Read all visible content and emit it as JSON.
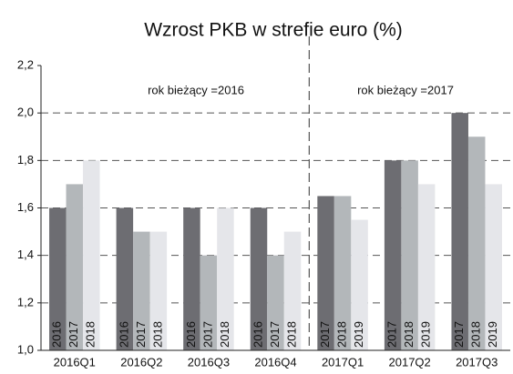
{
  "chart_data": {
    "type": "bar",
    "title": "Wzrost PKB w strefie euro (%)",
    "categories": [
      "2016Q1",
      "2016Q2",
      "2016Q3",
      "2016Q4",
      "2017Q1",
      "2017Q2",
      "2017Q3"
    ],
    "series": [
      {
        "color": "#6d6d72",
        "values": [
          1.6,
          1.6,
          1.6,
          1.6,
          1.65,
          1.8,
          2.0
        ]
      },
      {
        "color": "#b3b7ba",
        "values": [
          1.7,
          1.5,
          1.4,
          1.4,
          1.65,
          1.8,
          1.9
        ]
      },
      {
        "color": "#e5e6ea",
        "values": [
          1.8,
          1.5,
          1.6,
          1.5,
          1.55,
          1.7,
          1.7
        ]
      }
    ],
    "bar_labels": [
      [
        "2016",
        "2017",
        "2018"
      ],
      [
        "2016",
        "2017",
        "2018"
      ],
      [
        "2016",
        "2017",
        "2018"
      ],
      [
        "2016",
        "2017",
        "2018"
      ],
      [
        "2017",
        "2018",
        "2019"
      ],
      [
        "2017",
        "2018",
        "2019"
      ],
      [
        "2017",
        "2018",
        "2019"
      ]
    ],
    "annotations": [
      "rok bieżący =2016",
      "rok bieżący =2017"
    ],
    "ylim": [
      1.0,
      2.2
    ],
    "yticks": [
      {
        "value": 1.0,
        "label": "1,0"
      },
      {
        "value": 1.2,
        "label": "1,2"
      },
      {
        "value": 1.4,
        "label": "1,4"
      },
      {
        "value": 1.6,
        "label": "1,6"
      },
      {
        "value": 1.8,
        "label": "1,8"
      },
      {
        "value": 2.0,
        "label": "2,0"
      },
      {
        "value": 2.2,
        "label": "2,2"
      }
    ],
    "grid": true
  }
}
